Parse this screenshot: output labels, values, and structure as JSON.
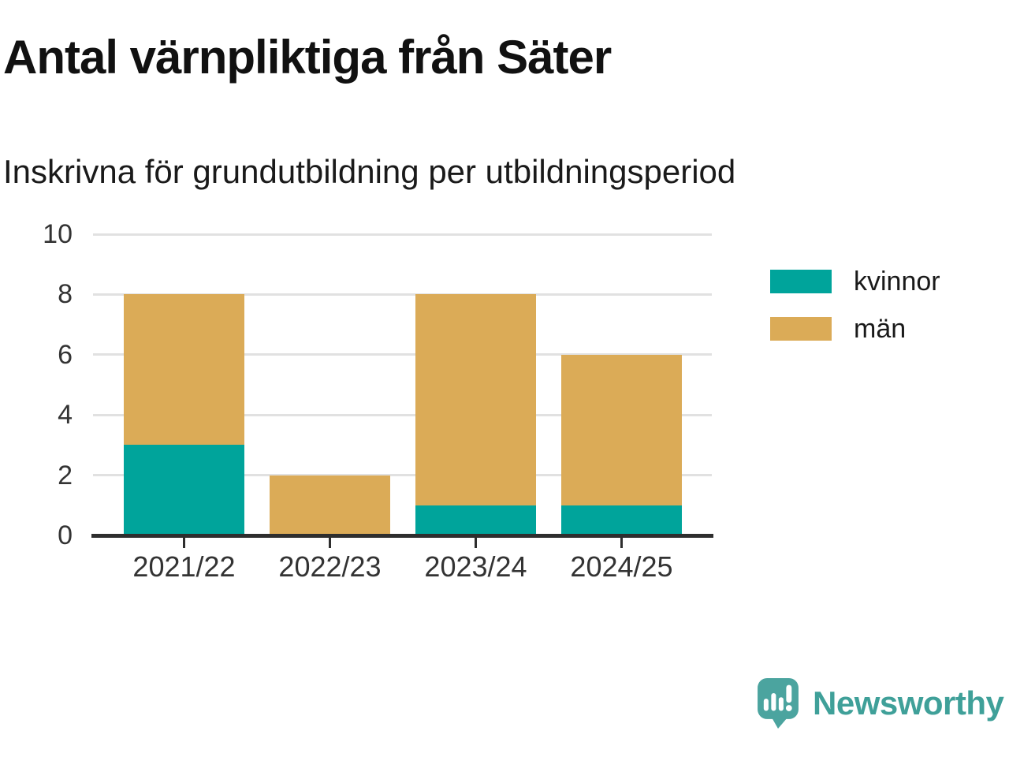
{
  "title": "Antal värnpliktiga från Säter",
  "subtitle": "Inskrivna för grundutbildning per utbildningsperiod",
  "chart_data": {
    "type": "bar",
    "stacked": true,
    "title": "Antal värnpliktiga från Säter",
    "subtitle": "Inskrivna för grundutbildning per utbildningsperiod",
    "categories": [
      "2021/22",
      "2022/23",
      "2023/24",
      "2024/25"
    ],
    "series": [
      {
        "name": "kvinnor",
        "color": "#00A49B",
        "values": [
          3,
          0,
          1,
          1
        ]
      },
      {
        "name": "män",
        "color": "#DBAB57",
        "values": [
          5,
          2,
          7,
          5
        ]
      }
    ],
    "totals": [
      8,
      2,
      8,
      6
    ],
    "xlabel": "",
    "ylabel": "",
    "ylim": [
      0,
      10
    ],
    "yticks": [
      0,
      2,
      4,
      6,
      8,
      10
    ],
    "grid": true,
    "legend_position": "right"
  },
  "branding": {
    "logo_text": "Newsworthy",
    "logo_icon": "speech-bubble-bar-chart-icon",
    "logo_color": "#3fa099"
  }
}
